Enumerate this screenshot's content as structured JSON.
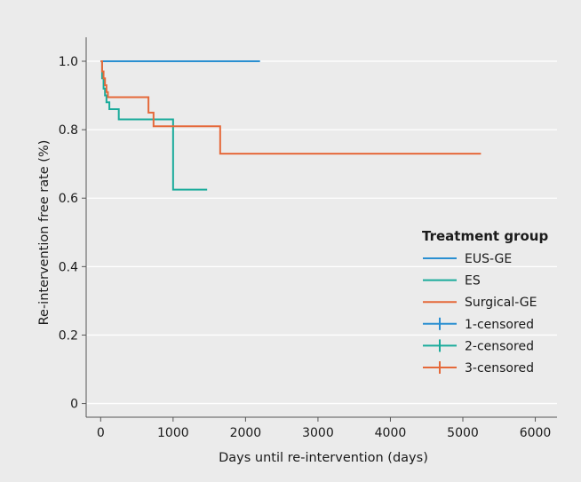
{
  "chart_data": {
    "type": "line",
    "step": true,
    "title": "",
    "xlabel": "Days until re-intervention (days)",
    "ylabel": "Re-intervention free rate (%)",
    "xlim": [
      -200,
      6300
    ],
    "ylim": [
      -0.04,
      1.07
    ],
    "x_ticks": [
      0,
      1000,
      2000,
      3000,
      4000,
      5000,
      6000
    ],
    "x_tick_labels": [
      "0",
      "1000",
      "2000",
      "3000",
      "4000",
      "5000",
      "6000"
    ],
    "y_ticks": [
      0,
      0.2,
      0.4,
      0.6,
      0.8,
      1.0
    ],
    "y_tick_labels": [
      "0",
      "0.2",
      "0.4",
      "0.6",
      "0.8",
      "1.0"
    ],
    "grid": "horizontal",
    "legend_position": "right",
    "legend_title": "Treatment group",
    "series": [
      {
        "name": "EUS-GE",
        "color": "#2a8fd1",
        "x": [
          0,
          10,
          2200
        ],
        "y": [
          1.0,
          1.0,
          1.0
        ]
      },
      {
        "name": "ES",
        "color": "#1aab9b",
        "x": [
          0,
          20,
          40,
          60,
          80,
          120,
          250,
          1000,
          1470
        ],
        "y": [
          1.0,
          0.95,
          0.92,
          0.9,
          0.88,
          0.86,
          0.83,
          0.625,
          0.625
        ]
      },
      {
        "name": "Surgical-GE",
        "color": "#e5693a",
        "x": [
          0,
          20,
          40,
          60,
          80,
          100,
          660,
          730,
          1650,
          5250
        ],
        "y": [
          1.0,
          0.97,
          0.95,
          0.93,
          0.91,
          0.895,
          0.85,
          0.81,
          0.73,
          0.73
        ]
      }
    ],
    "censored_legend": [
      {
        "name": "1-censored",
        "color": "#2a8fd1"
      },
      {
        "name": "2-censored",
        "color": "#1aab9b"
      },
      {
        "name": "3-censored",
        "color": "#e5693a"
      }
    ]
  }
}
